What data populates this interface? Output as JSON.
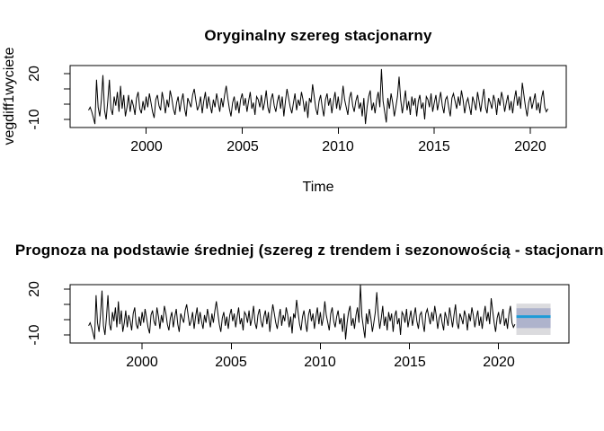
{
  "window": {
    "background": "#ffffff",
    "plot_line_color": "#000000"
  },
  "chart_data": [
    {
      "type": "line",
      "title": "Oryginalny szereg stacjonarny",
      "xlabel": "Time",
      "ylabel": "vegdiff1wyciete",
      "x_start": 1997.0,
      "x_step_years": 0.0833333,
      "x_ticks": [
        2000,
        2005,
        2010,
        2015,
        2020
      ],
      "x_tick_labels": [
        "2000",
        "2005",
        "2010",
        "2015",
        "2020"
      ],
      "y_ticks": [
        -10,
        0,
        10,
        20
      ],
      "y_tick_labels_shown": [
        "20",
        "-10"
      ],
      "xlim": [
        1996.04,
        2021.87
      ],
      "ylim": [
        -15.3,
        25.3
      ],
      "grid": false,
      "line_color": "#000000",
      "values": [
        -4,
        -2,
        -5,
        -9,
        -13,
        16,
        -2,
        -8,
        3,
        19,
        -4,
        -10,
        2,
        16,
        -3,
        -7,
        5,
        -1,
        8,
        -5,
        12,
        -3,
        6,
        -8,
        -2,
        6,
        -5,
        3,
        -1,
        -7,
        4,
        8,
        -3,
        -6,
        2,
        -4,
        5,
        -2,
        7,
        1,
        -5,
        -9,
        3,
        6,
        -1,
        -4,
        8,
        2,
        -6,
        3,
        -2,
        9,
        4,
        -3,
        -7,
        1,
        5,
        -5,
        2,
        7,
        -3,
        -8,
        4,
        1,
        -2,
        6,
        10,
        3,
        -4,
        -1,
        5,
        -6,
        2,
        8,
        -3,
        5,
        -1,
        -6,
        3,
        -2,
        7,
        1,
        -5,
        4,
        -2,
        6,
        12,
        4,
        -3,
        -8,
        1,
        5,
        -4,
        2,
        -6,
        3,
        7,
        -1,
        4,
        -5,
        2,
        8,
        -3,
        1,
        -7,
        5,
        3,
        -2,
        6,
        -4,
        1,
        9,
        -2,
        -6,
        3,
        7,
        -1,
        -5,
        2,
        6,
        -3,
        5,
        -8,
        2,
        10,
        4,
        -2,
        -6,
        1,
        7,
        -4,
        3,
        -1,
        8,
        3,
        -5,
        2,
        -9,
        4,
        1,
        13,
        5,
        -3,
        -7,
        2,
        6,
        -2,
        -8,
        3,
        7,
        -1,
        4,
        -6,
        2,
        8,
        -3,
        5,
        -4,
        1,
        12,
        3,
        -2,
        -7,
        4,
        8,
        -1,
        -5,
        2,
        6,
        -3,
        1,
        -8,
        4,
        -13,
        -2,
        5,
        9,
        -4,
        1,
        -6,
        3,
        8,
        -2,
        23,
        2,
        -5,
        -12,
        4,
        -3,
        7,
        1,
        -8,
        -2,
        5,
        18,
        3,
        -6,
        1,
        9,
        -4,
        2,
        -7,
        5,
        -1,
        4,
        -8,
        2,
        6,
        -3,
        1,
        -10,
        5,
        3,
        -2,
        7,
        -5,
        1,
        6,
        -4,
        2,
        8,
        -1,
        -6,
        3,
        5,
        -2,
        -8,
        4,
        7,
        2,
        -3,
        5,
        -1,
        9,
        3,
        -6,
        1,
        4,
        -2,
        -7,
        5,
        1,
        -4,
        8,
        2,
        -5,
        3,
        10,
        -2,
        -6,
        4,
        1,
        -3,
        6,
        2,
        -7,
        4,
        -1,
        8,
        3,
        -5,
        1,
        6,
        -4,
        2,
        -6,
        3,
        9,
        -1,
        5,
        -3,
        14,
        6,
        -2,
        -8,
        1,
        5,
        -3,
        2,
        7,
        -4,
        1,
        -6,
        4,
        9,
        -2,
        -5,
        -3
      ]
    },
    {
      "type": "line-forecast",
      "title": "Prognoza na podstawie średniej (szereg z trendem i sezonowością - stacjonarny)",
      "title_clipped_in_view": true,
      "xlabel": "",
      "ylabel": "",
      "x_start": 1997.0,
      "x_step_years": 0.0833333,
      "x_ticks": [
        2000,
        2005,
        2010,
        2015,
        2020
      ],
      "x_tick_labels": [
        "2000",
        "2005",
        "2010",
        "2015",
        "2020"
      ],
      "y_ticks": [
        -10,
        0,
        10,
        20
      ],
      "y_tick_labels_shown": [
        "20",
        "-10"
      ],
      "xlim": [
        1995.96,
        2023.95
      ],
      "ylim": [
        -15.3,
        22.9
      ],
      "grid": false,
      "line_color": "#000000",
      "values_from_chart_index": 0,
      "forecast": {
        "start": 2021.0,
        "end": 2022.917,
        "mean": 2,
        "interval_80": [
          -5.5,
          7.5
        ],
        "interval_95": [
          -10,
          10.5
        ],
        "mean_line_color": "#1E9BD7",
        "band_80_color": "#AEB3CC",
        "band_95_color": "#DBDBDE"
      }
    }
  ]
}
